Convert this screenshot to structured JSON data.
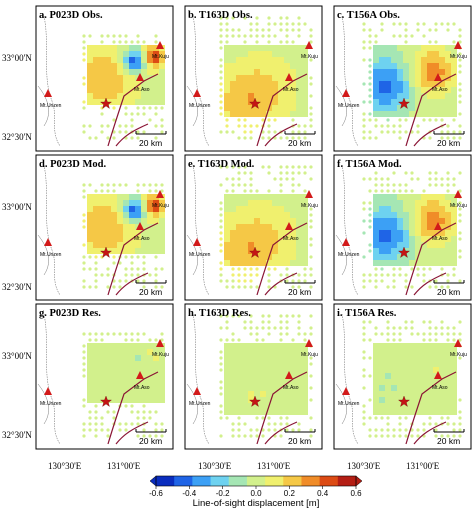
{
  "panels": [
    {
      "title": "a. P023D Obs.",
      "pattern": "P023D",
      "mode": "obs"
    },
    {
      "title": "b. T163D Obs.",
      "pattern": "T163D",
      "mode": "obs"
    },
    {
      "title": "c. T156A Obs.",
      "pattern": "T156A",
      "mode": "obs"
    },
    {
      "title": "d. P023D Mod.",
      "pattern": "P023D",
      "mode": "mod"
    },
    {
      "title": "e. T163D Mod.",
      "pattern": "T163D",
      "mode": "mod"
    },
    {
      "title": "f. T156A Mod.",
      "pattern": "T156A",
      "mode": "mod"
    },
    {
      "title": "g. P023D Res.",
      "pattern": "P023D",
      "mode": "res"
    },
    {
      "title": "h. T163D Res.",
      "pattern": "T163D",
      "mode": "res"
    },
    {
      "title": "i. T156A Res.",
      "pattern": "T156A",
      "mode": "res"
    }
  ],
  "volcano_labels": {
    "kuju": "Mt.Kuju",
    "aso": "Mt.Aso",
    "unzen": "Mt.Unzen"
  },
  "scale_bar": "20 km",
  "lat_labels": [
    "33°00'N",
    "32°30'N"
  ],
  "lon_labels": [
    "130°30'E",
    "131°00'E"
  ],
  "colorbar": {
    "title": "Line-of-sight displacement [m]",
    "ticks": [
      "-0.6",
      "-0.4",
      "-0.2",
      "0.0",
      "0.2",
      "0.4",
      "0.6"
    ],
    "colors": [
      "#0a2dbe",
      "#1f64e6",
      "#3ca0f5",
      "#6ed2f0",
      "#a5e6b4",
      "#d2f08c",
      "#f0f06e",
      "#f5c846",
      "#f08c28",
      "#dc4b14",
      "#b41e14"
    ]
  },
  "colors": {
    "volcano": "#d21a1a",
    "fault": "#8a1535",
    "coast": "#7a7a7a",
    "frame": "#000000"
  }
}
